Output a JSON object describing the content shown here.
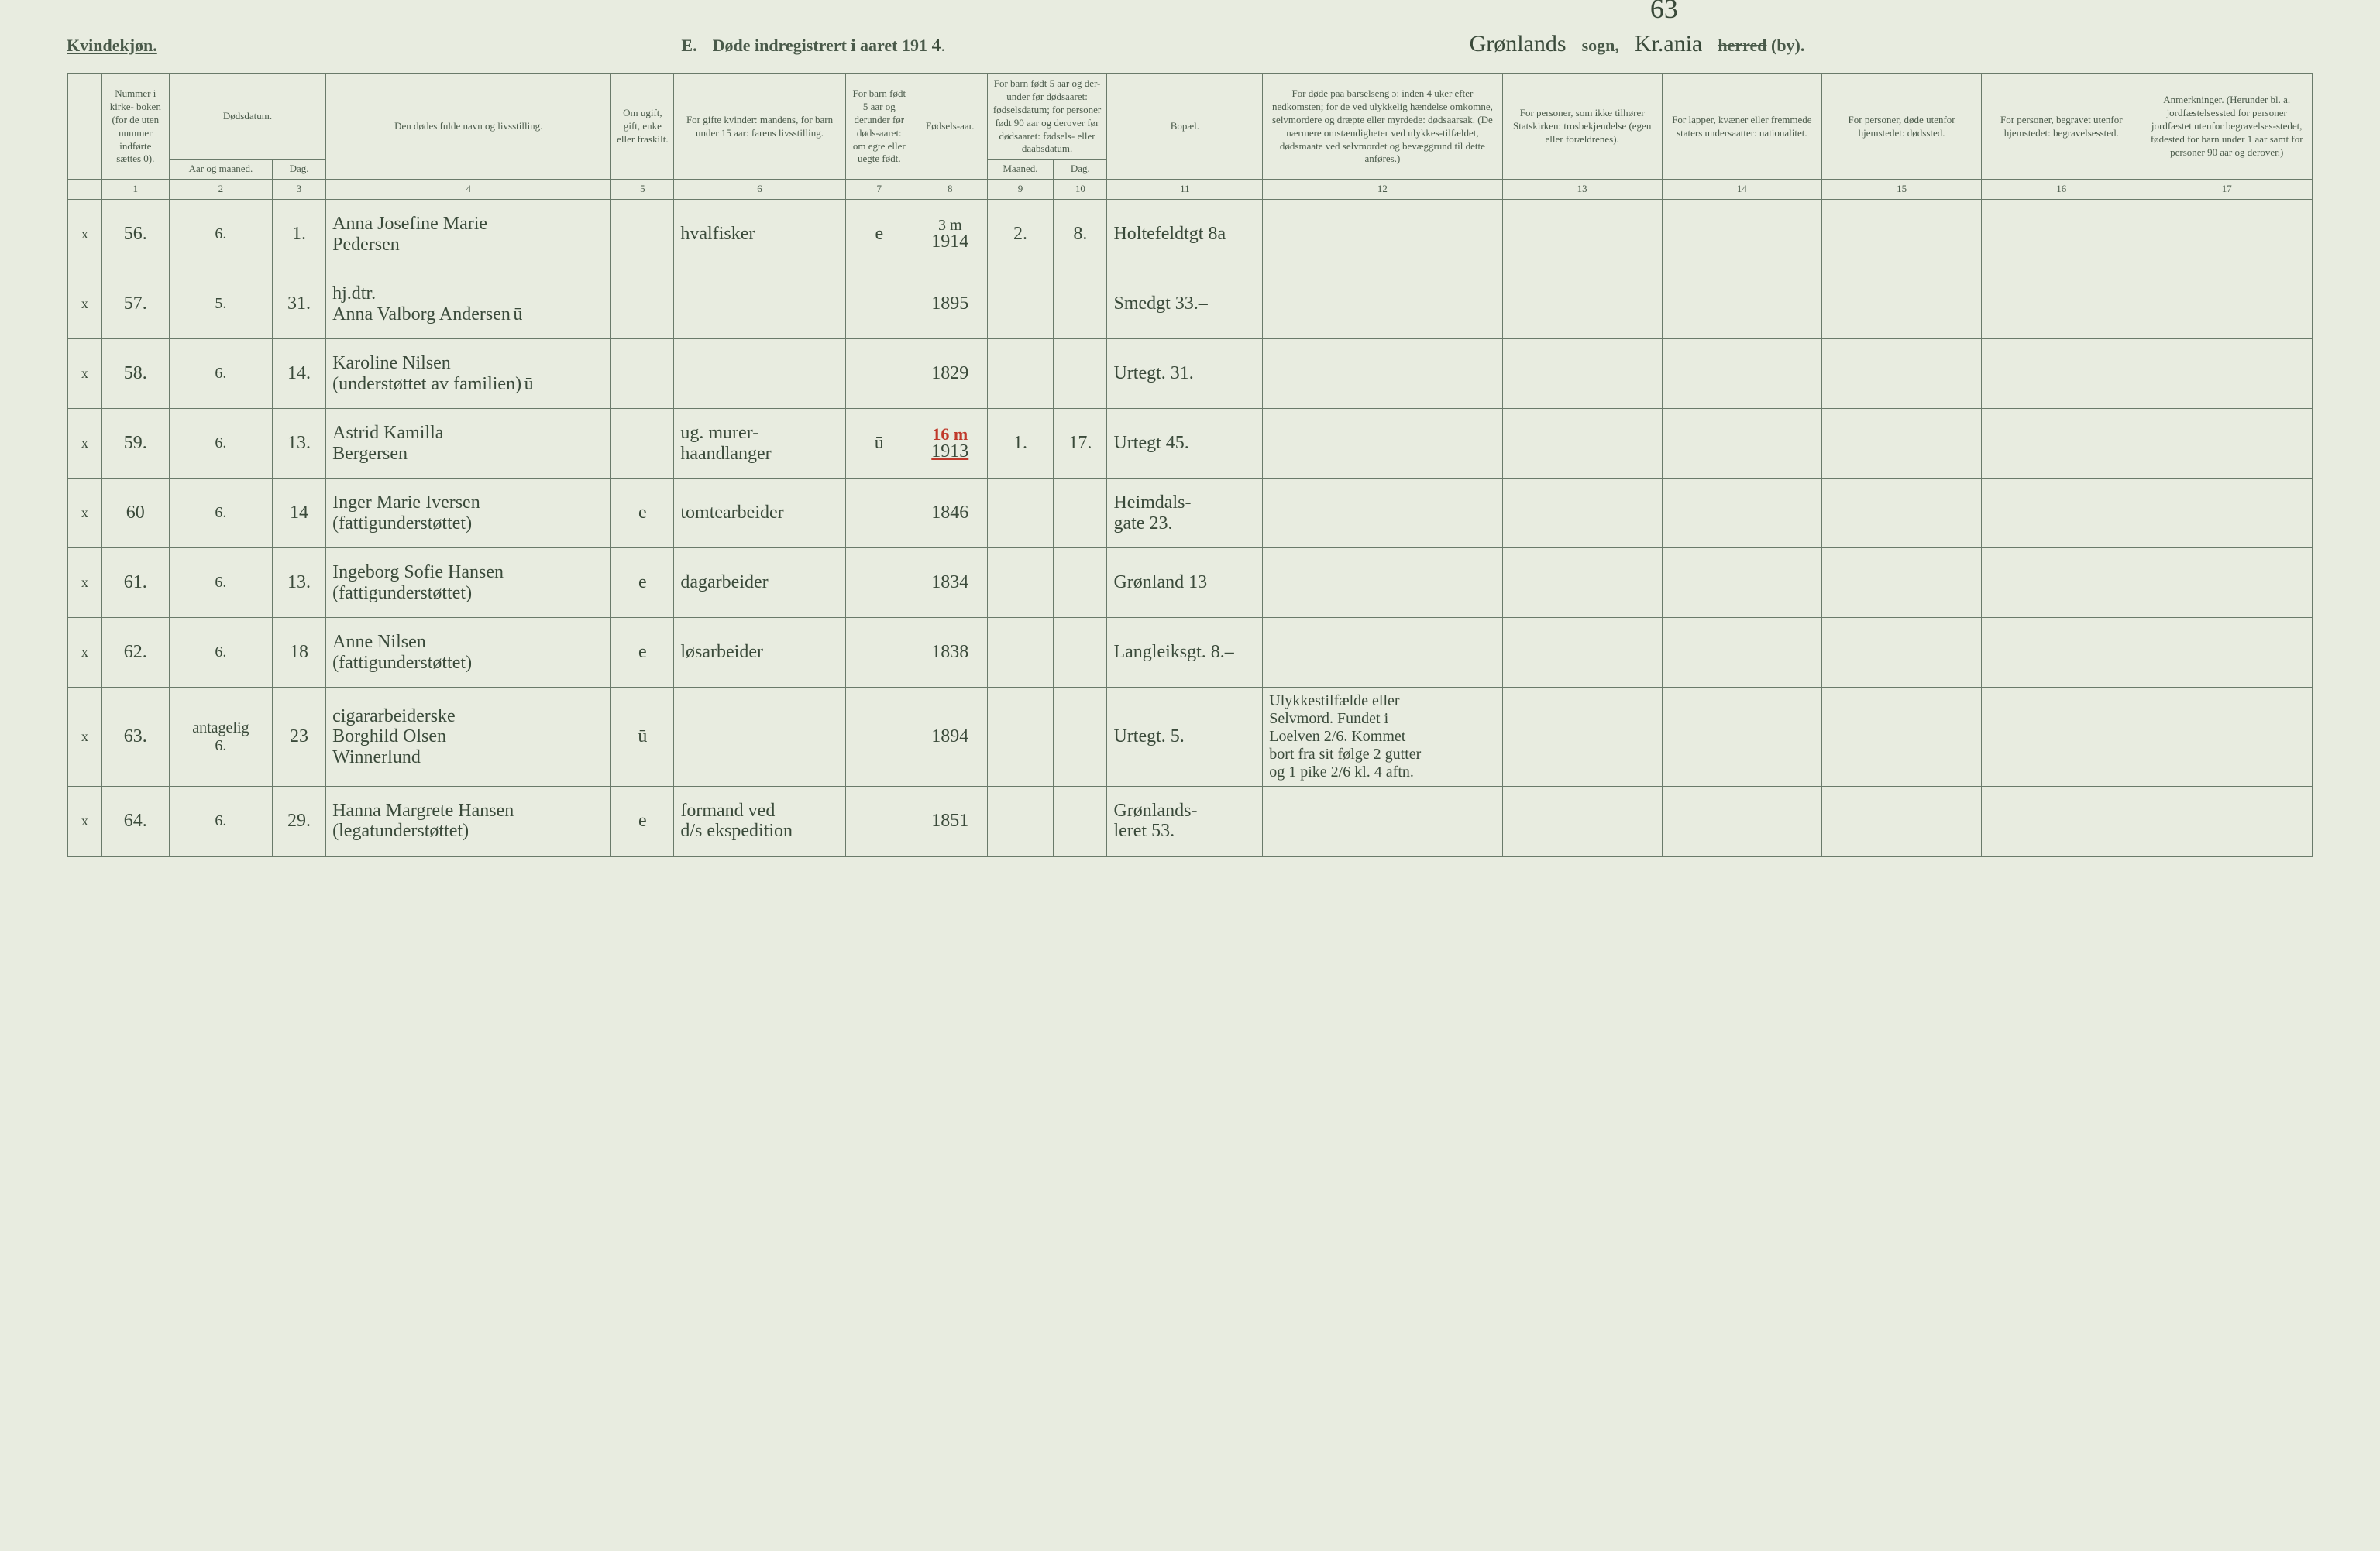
{
  "header": {
    "gender": "Kvindekjøn.",
    "section": "E.",
    "title_prefix": "Døde indregistrert i aaret 191",
    "year_suffix": "4",
    "page_number": "63",
    "sogn_value": "Grønlands",
    "sogn_label": "sogn,",
    "herred_value": "Kr.ania",
    "herred_struck": "herred",
    "herred_label": "(by)."
  },
  "columns": [
    {
      "n": "1",
      "label": "Nummer i kirke-\nboken (for de uten nummer indførte sættes 0)."
    },
    {
      "n": "2",
      "label": "Dødsdatum.\nAar og maaned."
    },
    {
      "n": "3",
      "label": "Dag."
    },
    {
      "n": "4",
      "label": "Den dødes fulde navn og livsstilling."
    },
    {
      "n": "5",
      "label": "Om ugift, gift, enke eller fraskilt."
    },
    {
      "n": "6",
      "label": "For gifte kvinder: mandens,\nfor barn under 15 aar: farens livsstilling."
    },
    {
      "n": "7",
      "label": "For barn født 5 aar og derunder før døds-aaret: om egte eller uegte født."
    },
    {
      "n": "8",
      "label": "Fødsels-aar."
    },
    {
      "n": "9",
      "label": "Maaned."
    },
    {
      "n": "10",
      "label": "Dag."
    },
    {
      "n": "11",
      "label": "Bopæl."
    },
    {
      "n": "12",
      "label": "For døde paa barselseng ɔ: inden 4 uker efter nedkomsten; for de ved ulykkelig hændelse omkomne, selvmordere og dræpte eller myrdede: dødsaarsak. (De nærmere omstændigheter ved ulykkes-tilfældet, dødsmaate ved selvmordet og bevæggrund til dette anføres.)"
    },
    {
      "n": "13",
      "label": "For personer, som ikke tilhører Statskirken: trosbekjendelse (egen eller forældrenes)."
    },
    {
      "n": "14",
      "label": "For lapper, kvæner eller fremmede staters undersaatter: nationalitet."
    },
    {
      "n": "15",
      "label": "For personer, døde utenfor hjemstedet: dødssted."
    },
    {
      "n": "16",
      "label": "For personer, begravet utenfor hjemstedet: begravelsessted."
    },
    {
      "n": "17",
      "label": "Anmerkninger. (Herunder bl. a. jordfæstelsessted for personer jordfæstet utenfor begravelses-stedet, fødested for barn under 1 aar samt for personer 90 aar og derover.)"
    }
  ],
  "rows": [
    {
      "x": "x",
      "num": "56.",
      "mon": "6.",
      "day": "1.",
      "name": "Anna Josefine Marie\nPedersen",
      "civil": "",
      "occ": "hvalfisker",
      "legit": "e",
      "byear": "1914",
      "bmon": "2.",
      "bday": "8.",
      "addr": "Holtefeldtgt 8a",
      "note_top": "3 m"
    },
    {
      "x": "x",
      "num": "57.",
      "mon": "5.",
      "day": "31.",
      "name": "hj.dtr.\nAnna Valborg Andersen",
      "name_ud": "ū",
      "civil": "",
      "occ": "",
      "legit": "",
      "byear": "1895",
      "bmon": "",
      "bday": "",
      "addr": "Smedgt 33.–"
    },
    {
      "x": "x",
      "num": "58.",
      "mon": "6.",
      "day": "14.",
      "name": "Karoline Nilsen\n(understøttet av familien)",
      "name_ud": "ū",
      "civil": "",
      "occ": "",
      "legit": "",
      "byear": "1829",
      "bmon": "",
      "bday": "",
      "addr": "Urtegt. 31."
    },
    {
      "x": "x",
      "num": "59.",
      "mon": "6.",
      "day": "13.",
      "name": "Astrid Kamilla\nBergersen",
      "civil": "",
      "occ": "ug. murer-\nhaandlanger",
      "legit": "ū",
      "byear": "1913",
      "bmon": "1.",
      "bday": "17.",
      "addr": "Urtegt 45.",
      "note_top": "16 m",
      "note_red": true
    },
    {
      "x": "x",
      "num": "60",
      "mon": "6.",
      "day": "14",
      "name": "Inger Marie Iversen\n(fattigunderstøttet)",
      "civil": "e",
      "occ": "tomtearbeider",
      "legit": "",
      "byear": "1846",
      "bmon": "",
      "bday": "",
      "addr": "Heimdals-\ngate 23."
    },
    {
      "x": "x",
      "num": "61.",
      "mon": "6.",
      "day": "13.",
      "name": "Ingeborg Sofie Hansen\n(fattigunderstøttet)",
      "civil": "e",
      "occ": "dagarbeider",
      "legit": "",
      "byear": "1834",
      "bmon": "",
      "bday": "",
      "addr": "Grønland 13"
    },
    {
      "x": "x",
      "num": "62.",
      "mon": "6.",
      "day": "18",
      "name": "Anne Nilsen\n(fattigunderstøttet)",
      "civil": "e",
      "occ": "løsarbeider",
      "legit": "",
      "byear": "1838",
      "bmon": "",
      "bday": "",
      "addr": "Langleiksgt. 8.–"
    },
    {
      "x": "x",
      "num": "63.",
      "mon": "antagelig\n6.",
      "day": "23",
      "name": "cigararbeiderske\nBorghild Olsen\nWinnerlund",
      "civil": "ū",
      "occ": "",
      "legit": "",
      "byear": "1894",
      "bmon": "",
      "bday": "",
      "addr": "Urtegt. 5.",
      "cause": "Ulykkestilfælde eller\nSelvmord. Fundet i\nLoelven 2/6. Kommet\nbort fra sit følge 2 gutter\nog 1 pike 2/6 kl. 4 aftn."
    },
    {
      "x": "x",
      "num": "64.",
      "mon": "6.",
      "day": "29.",
      "name": "Hanna Margrete Hansen\n(legatunderstøttet)",
      "civil": "e",
      "occ": "formand ved\nd/s ekspedition",
      "legit": "",
      "byear": "1851",
      "bmon": "",
      "bday": "",
      "addr": "Grønlands-\nleret 53."
    }
  ],
  "styling": {
    "background_color": "#e8ece0",
    "border_color": "#6a7a6a",
    "text_color": "#4a5a4a",
    "handwriting_color": "#3a4a3a",
    "red_color": "#c0392b",
    "font_header": "serif",
    "font_handwriting": "cursive"
  }
}
